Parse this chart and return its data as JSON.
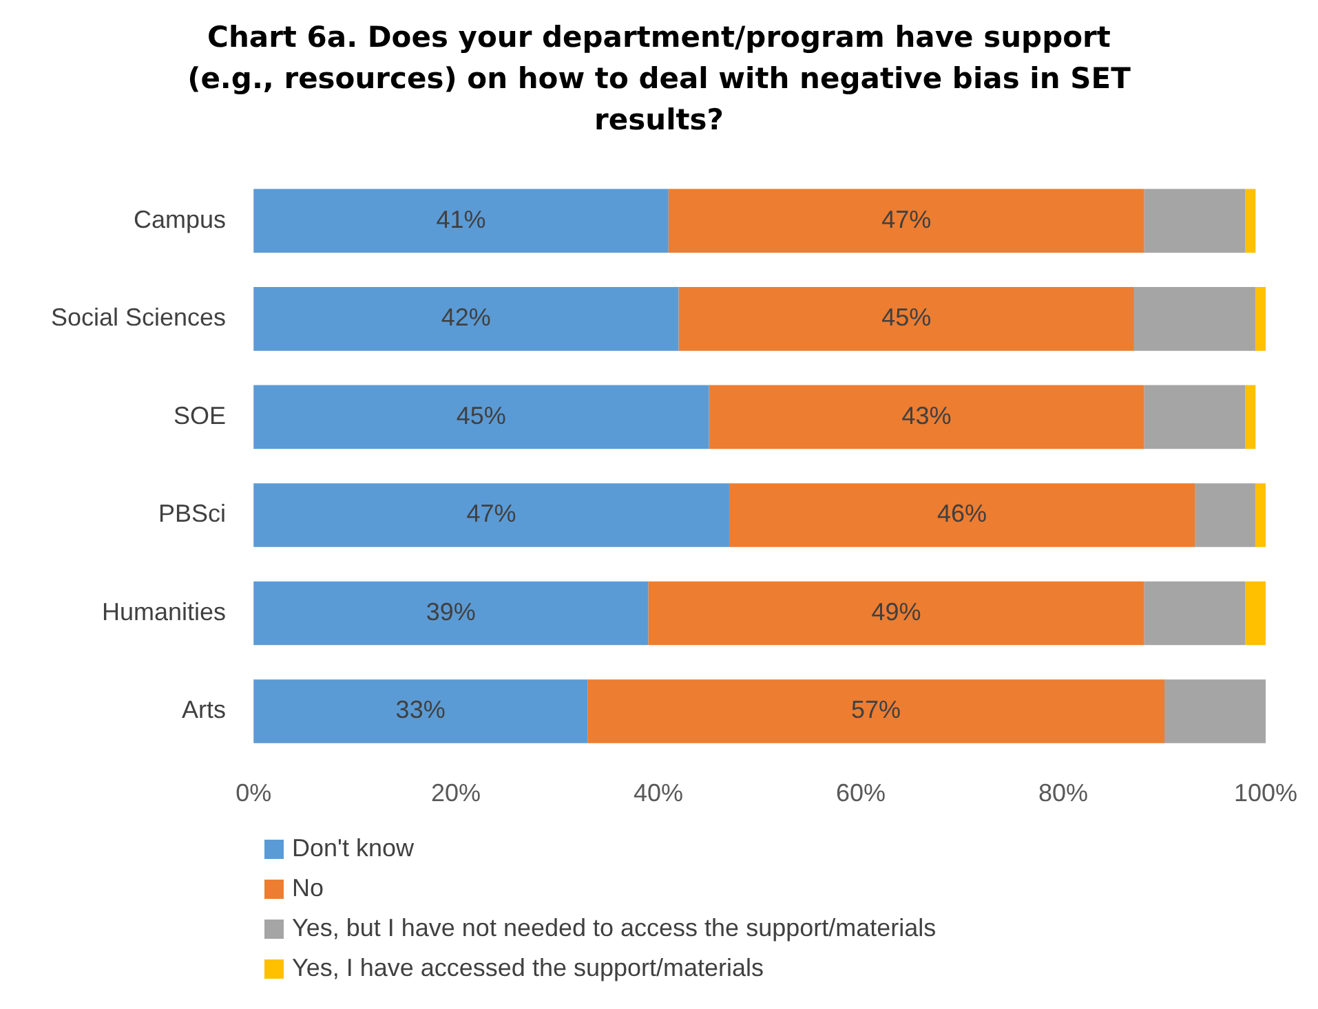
{
  "chart_data": {
    "type": "bar",
    "orientation": "horizontal",
    "stacked": true,
    "title": "Chart 6a. Does your department/program have support (e.g., resources) on how to deal with negative bias in SET results?",
    "categories": [
      "Campus",
      "Social Sciences",
      "SOE",
      "PBSci",
      "Humanities",
      "Arts"
    ],
    "series": [
      {
        "name": "Don't know",
        "color": "#5b9bd5",
        "values": [
          41,
          42,
          45,
          47,
          39,
          33
        ],
        "value_labels": [
          "41%",
          "42%",
          "45%",
          "47%",
          "39%",
          "33%"
        ]
      },
      {
        "name": "No",
        "color": "#ed7d31",
        "values": [
          47,
          45,
          43,
          46,
          49,
          57
        ],
        "value_labels": [
          "47%",
          "45%",
          "43%",
          "46%",
          "49%",
          "57%"
        ]
      },
      {
        "name": "Yes, but I have not needed to access the support/materials",
        "color": "#a5a5a5",
        "values": [
          10,
          12,
          10,
          6,
          10,
          10
        ]
      },
      {
        "name": "Yes, I have accessed the support/materials",
        "color": "#ffc000",
        "values": [
          1,
          1,
          1,
          1,
          2,
          0
        ]
      }
    ],
    "xlim": [
      0,
      100
    ],
    "xticks": [
      {
        "value": 0,
        "label": "0%"
      },
      {
        "value": 20,
        "label": "20%"
      },
      {
        "value": 40,
        "label": "40%"
      },
      {
        "value": 60,
        "label": "60%"
      },
      {
        "value": 80,
        "label": "80%"
      },
      {
        "value": 100,
        "label": "100%"
      }
    ],
    "grid": false,
    "legend": "bottom"
  }
}
